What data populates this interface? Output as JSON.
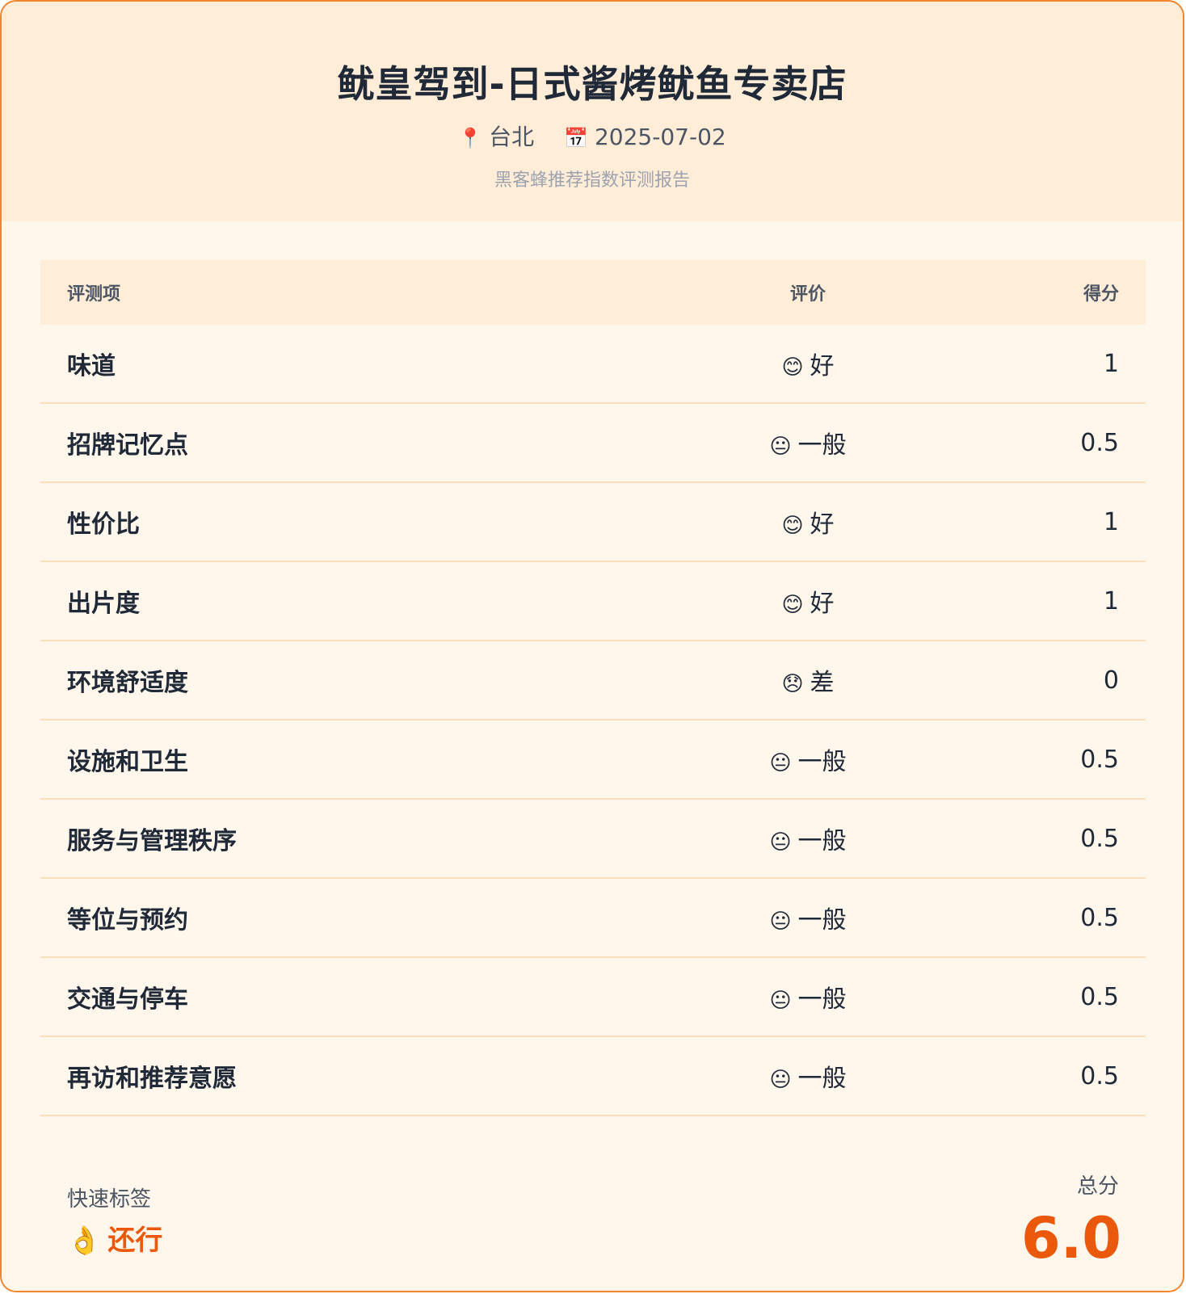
{
  "header": {
    "title": "鱿皇驾到-日式酱烤鱿鱼专卖店",
    "location_icon": "📍",
    "location": "台北",
    "date_icon": "📅",
    "date": "2025-07-02",
    "subtitle": "黑客蜂推荐指数评测报告"
  },
  "table": {
    "headers": [
      "评测项",
      "评价",
      "得分"
    ],
    "rows": [
      {
        "item": "味道",
        "emoji": "😊",
        "rating": "好",
        "score": "1"
      },
      {
        "item": "招牌记忆点",
        "emoji": "😐",
        "rating": "一般",
        "score": "0.5"
      },
      {
        "item": "性价比",
        "emoji": "😊",
        "rating": "好",
        "score": "1"
      },
      {
        "item": "出片度",
        "emoji": "😊",
        "rating": "好",
        "score": "1"
      },
      {
        "item": "环境舒适度",
        "emoji": "😞",
        "rating": "差",
        "score": "0"
      },
      {
        "item": "设施和卫生",
        "emoji": "😐",
        "rating": "一般",
        "score": "0.5"
      },
      {
        "item": "服务与管理秩序",
        "emoji": "😐",
        "rating": "一般",
        "score": "0.5"
      },
      {
        "item": "等位与预约",
        "emoji": "😐",
        "rating": "一般",
        "score": "0.5"
      },
      {
        "item": "交通与停车",
        "emoji": "😐",
        "rating": "一般",
        "score": "0.5"
      },
      {
        "item": "再访和推荐意愿",
        "emoji": "😐",
        "rating": "一般",
        "score": "0.5"
      }
    ]
  },
  "footer": {
    "tags_label": "快速标签",
    "tag_emoji": "👌",
    "tag": "还行",
    "total_label": "总分",
    "total": "6.0"
  },
  "colors": {
    "border": "#f0852c",
    "header_bg": "#ffedd8",
    "body_bg": "#fff6ec",
    "accent": "#ea580c"
  }
}
